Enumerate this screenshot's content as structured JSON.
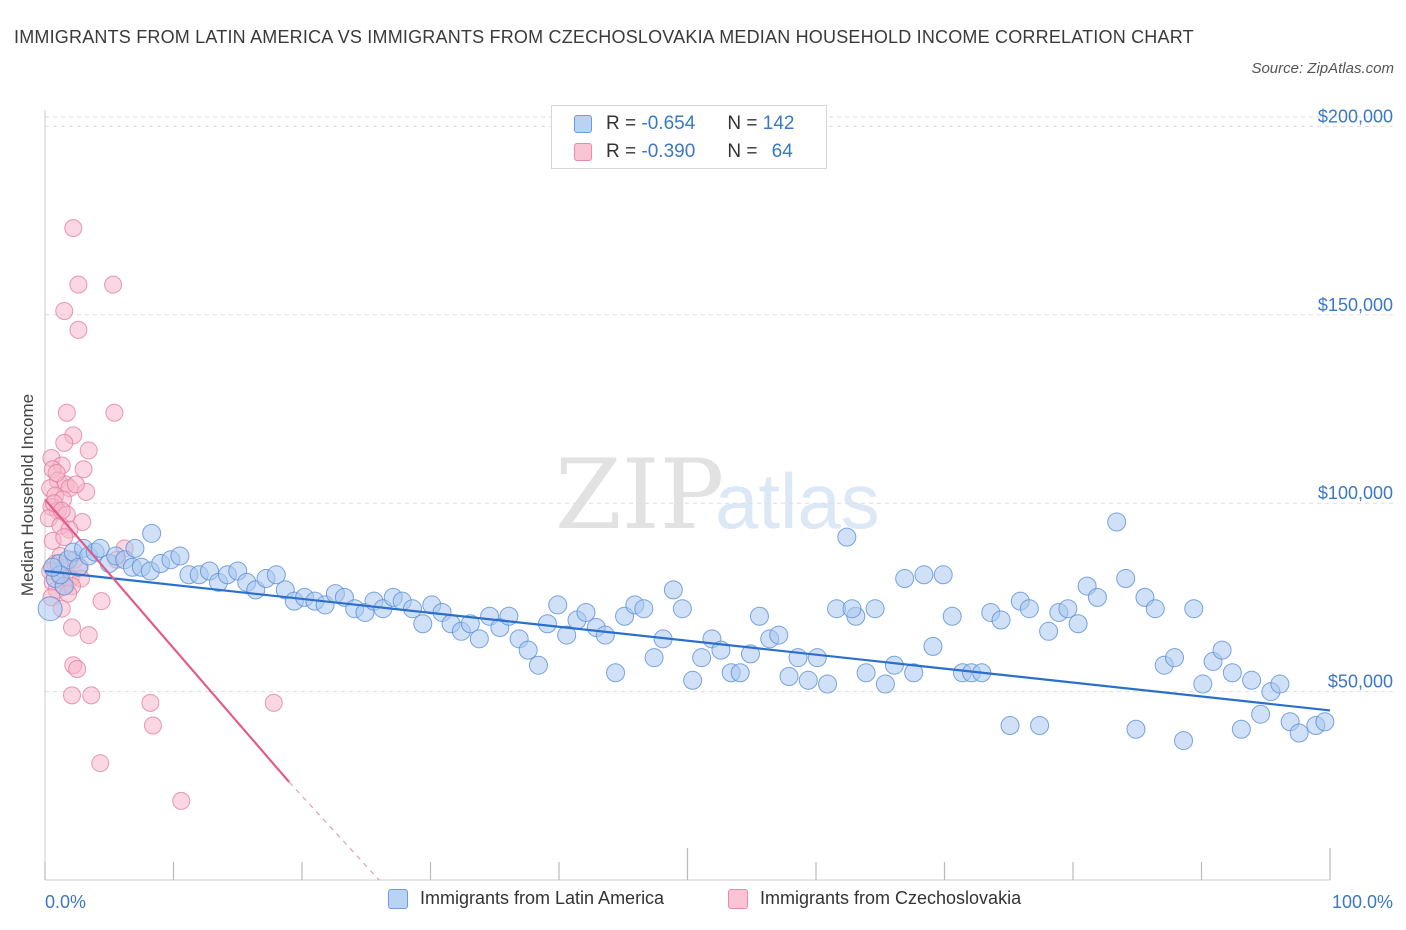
{
  "title": "IMMIGRANTS FROM LATIN AMERICA VS IMMIGRANTS FROM CZECHOSLOVAKIA MEDIAN HOUSEHOLD INCOME CORRELATION CHART",
  "source": "Source: ZipAtlas.com",
  "watermark": {
    "zip": "ZIP",
    "atlas": "atlas"
  },
  "legend": {
    "rows": [
      {
        "r_label": "R =",
        "r_value": "-0.654",
        "n_label": "N =",
        "n_value": "142"
      },
      {
        "r_label": "R =",
        "r_value": "-0.390",
        "n_label": "N =",
        "n_value": "64"
      }
    ]
  },
  "bottom_legend": [
    "Immigrants from Latin America",
    "Immigrants from Czechoslovakia"
  ],
  "colors": {
    "blue_fill": "#a9c8f0",
    "blue_stroke": "#5a8fd6",
    "blue_line": "#2a6fcc",
    "pink_fill": "#f6b6ca",
    "pink_stroke": "#e07a9c",
    "pink_line": "#e05c8a",
    "axis_text": "#3a78c4",
    "grid": "#dddddd"
  },
  "chart_data": {
    "type": "scatter",
    "title": "IMMIGRANTS FROM LATIN AMERICA VS IMMIGRANTS FROM CZECHOSLOVAKIA MEDIAN HOUSEHOLD INCOME CORRELATION CHART",
    "xlabel": "",
    "ylabel": "Median Household Income",
    "x_tick_labels": [
      "0.0%",
      "100.0%"
    ],
    "y_tick_labels": [
      "$50,000",
      "$100,000",
      "$150,000",
      "$200,000"
    ],
    "y_ticks": [
      50000,
      100000,
      150000,
      200000
    ],
    "xlim": [
      0,
      100
    ],
    "ylim": [
      0,
      207000
    ],
    "grid": "horizontal dashed",
    "legend_placement": "top-center",
    "series": [
      {
        "name": "Immigrants from Latin America",
        "R": -0.654,
        "N": 142,
        "trend": {
          "x": [
            0,
            100
          ],
          "y": [
            82000,
            45000
          ]
        },
        "points": [
          [
            0.4,
            72000
          ],
          [
            0.8,
            80000
          ],
          [
            1.1,
            84000
          ],
          [
            1.5,
            78000
          ],
          [
            1.8,
            85000
          ],
          [
            2.2,
            87000
          ],
          [
            2.6,
            83000
          ],
          [
            3.0,
            88000
          ],
          [
            3.4,
            86000
          ],
          [
            3.9,
            87000
          ],
          [
            4.3,
            88000
          ],
          [
            5.0,
            84000
          ],
          [
            5.5,
            86000
          ],
          [
            6.2,
            85000
          ],
          [
            6.8,
            83000
          ],
          [
            8.3,
            92000
          ],
          [
            7.5,
            83000
          ],
          [
            8.2,
            82000
          ],
          [
            9.0,
            84000
          ],
          [
            9.8,
            85000
          ],
          [
            10.5,
            86000
          ],
          [
            11.2,
            81000
          ],
          [
            12.0,
            81000
          ],
          [
            12.8,
            82000
          ],
          [
            13.5,
            79000
          ],
          [
            14.2,
            81000
          ],
          [
            15.0,
            82000
          ],
          [
            15.7,
            79000
          ],
          [
            16.4,
            77000
          ],
          [
            17.2,
            80000
          ],
          [
            18.0,
            81000
          ],
          [
            18.7,
            77000
          ],
          [
            19.4,
            74000
          ],
          [
            20.2,
            75000
          ],
          [
            21.0,
            74000
          ],
          [
            21.8,
            73000
          ],
          [
            22.6,
            76000
          ],
          [
            23.3,
            75000
          ],
          [
            24.1,
            72000
          ],
          [
            24.9,
            71000
          ],
          [
            25.6,
            74000
          ],
          [
            26.3,
            72000
          ],
          [
            27.1,
            75000
          ],
          [
            27.8,
            74000
          ],
          [
            28.6,
            72000
          ],
          [
            29.4,
            68000
          ],
          [
            30.1,
            73000
          ],
          [
            30.9,
            71000
          ],
          [
            31.6,
            68000
          ],
          [
            32.4,
            66000
          ],
          [
            33.1,
            68000
          ],
          [
            33.8,
            64000
          ],
          [
            34.6,
            70000
          ],
          [
            35.4,
            67000
          ],
          [
            36.1,
            70000
          ],
          [
            36.9,
            64000
          ],
          [
            37.6,
            61000
          ],
          [
            38.4,
            57000
          ],
          [
            39.1,
            68000
          ],
          [
            39.9,
            73000
          ],
          [
            40.6,
            65000
          ],
          [
            41.4,
            69000
          ],
          [
            42.1,
            71000
          ],
          [
            42.9,
            67000
          ],
          [
            43.6,
            65000
          ],
          [
            44.4,
            55000
          ],
          [
            45.1,
            70000
          ],
          [
            45.9,
            73000
          ],
          [
            46.6,
            72000
          ],
          [
            47.4,
            59000
          ],
          [
            48.1,
            64000
          ],
          [
            48.9,
            77000
          ],
          [
            49.6,
            72000
          ],
          [
            50.4,
            53000
          ],
          [
            51.1,
            59000
          ],
          [
            51.9,
            64000
          ],
          [
            52.6,
            61000
          ],
          [
            53.4,
            55000
          ],
          [
            54.1,
            55000
          ],
          [
            54.9,
            60000
          ],
          [
            55.6,
            70000
          ],
          [
            56.4,
            64000
          ],
          [
            57.1,
            65000
          ],
          [
            57.9,
            54000
          ],
          [
            58.6,
            59000
          ],
          [
            59.4,
            53000
          ],
          [
            60.1,
            59000
          ],
          [
            60.9,
            52000
          ],
          [
            61.6,
            72000
          ],
          [
            62.4,
            91000
          ],
          [
            63.1,
            70000
          ],
          [
            63.9,
            55000
          ],
          [
            64.6,
            72000
          ],
          [
            65.4,
            52000
          ],
          [
            66.1,
            57000
          ],
          [
            66.9,
            80000
          ],
          [
            67.6,
            55000
          ],
          [
            68.4,
            81000
          ],
          [
            69.1,
            62000
          ],
          [
            69.9,
            81000
          ],
          [
            70.6,
            70000
          ],
          [
            71.4,
            55000
          ],
          [
            72.1,
            55000
          ],
          [
            72.9,
            55000
          ],
          [
            73.6,
            71000
          ],
          [
            74.4,
            69000
          ],
          [
            75.1,
            41000
          ],
          [
            75.9,
            74000
          ],
          [
            76.6,
            72000
          ],
          [
            77.4,
            41000
          ],
          [
            78.1,
            66000
          ],
          [
            78.9,
            71000
          ],
          [
            79.6,
            72000
          ],
          [
            80.4,
            68000
          ],
          [
            81.1,
            78000
          ],
          [
            81.9,
            75000
          ],
          [
            62.8,
            72000
          ],
          [
            83.4,
            95000
          ],
          [
            84.1,
            80000
          ],
          [
            84.9,
            40000
          ],
          [
            85.6,
            75000
          ],
          [
            86.4,
            72000
          ],
          [
            87.1,
            57000
          ],
          [
            87.9,
            59000
          ],
          [
            88.6,
            37000
          ],
          [
            89.4,
            72000
          ],
          [
            90.1,
            52000
          ],
          [
            90.9,
            58000
          ],
          [
            91.6,
            61000
          ],
          [
            92.4,
            55000
          ],
          [
            93.1,
            40000
          ],
          [
            93.9,
            53000
          ],
          [
            94.6,
            44000
          ],
          [
            95.4,
            50000
          ],
          [
            96.1,
            52000
          ],
          [
            96.9,
            42000
          ],
          [
            97.6,
            39000
          ],
          [
            98.9,
            41000
          ],
          [
            99.6,
            42000
          ],
          [
            7.0,
            88000
          ],
          [
            1.2,
            81000
          ],
          [
            0.6,
            83000
          ]
        ]
      },
      {
        "name": "Immigrants from Czechoslovakia",
        "R": -0.39,
        "N": 64,
        "trend": {
          "x": [
            0,
            19
          ],
          "y": [
            101000,
            26000
          ],
          "dashed_extension": {
            "x": [
              19,
              26
            ],
            "y": [
              26000,
              0
            ]
          }
        },
        "points": [
          [
            2.2,
            173000
          ],
          [
            2.6,
            158000
          ],
          [
            5.3,
            158000
          ],
          [
            1.5,
            151000
          ],
          [
            2.6,
            146000
          ],
          [
            1.7,
            124000
          ],
          [
            5.4,
            124000
          ],
          [
            2.2,
            118000
          ],
          [
            1.5,
            116000
          ],
          [
            3.4,
            114000
          ],
          [
            0.5,
            112000
          ],
          [
            1.3,
            110000
          ],
          [
            0.6,
            109000
          ],
          [
            3.0,
            109000
          ],
          [
            1.0,
            106000
          ],
          [
            1.6,
            105000
          ],
          [
            0.4,
            104000
          ],
          [
            1.9,
            104000
          ],
          [
            3.2,
            103000
          ],
          [
            0.8,
            102000
          ],
          [
            1.4,
            101000
          ],
          [
            0.5,
            99000
          ],
          [
            1.0,
            98000
          ],
          [
            1.7,
            97000
          ],
          [
            0.3,
            96000
          ],
          [
            2.9,
            95000
          ],
          [
            1.2,
            94000
          ],
          [
            1.9,
            93000
          ],
          [
            0.6,
            90000
          ],
          [
            6.2,
            88000
          ],
          [
            1.2,
            86000
          ],
          [
            2.3,
            85000
          ],
          [
            5.6,
            85000
          ],
          [
            0.8,
            84000
          ],
          [
            1.6,
            83000
          ],
          [
            2.7,
            83000
          ],
          [
            0.4,
            82000
          ],
          [
            1.1,
            81000
          ],
          [
            2.0,
            80000
          ],
          [
            2.8,
            80000
          ],
          [
            0.6,
            79000
          ],
          [
            1.4,
            78000
          ],
          [
            2.1,
            78000
          ],
          [
            0.9,
            77000
          ],
          [
            1.8,
            76000
          ],
          [
            0.5,
            75000
          ],
          [
            4.4,
            74000
          ],
          [
            1.3,
            72000
          ],
          [
            2.1,
            67000
          ],
          [
            3.4,
            65000
          ],
          [
            2.2,
            57000
          ],
          [
            2.5,
            56000
          ],
          [
            2.1,
            49000
          ],
          [
            3.6,
            49000
          ],
          [
            8.2,
            47000
          ],
          [
            17.8,
            47000
          ],
          [
            8.4,
            41000
          ],
          [
            4.3,
            31000
          ],
          [
            10.6,
            21000
          ],
          [
            0.7,
            100000
          ],
          [
            1.5,
            91000
          ],
          [
            2.4,
            105000
          ],
          [
            0.9,
            108000
          ],
          [
            1.3,
            98000
          ]
        ]
      }
    ]
  }
}
